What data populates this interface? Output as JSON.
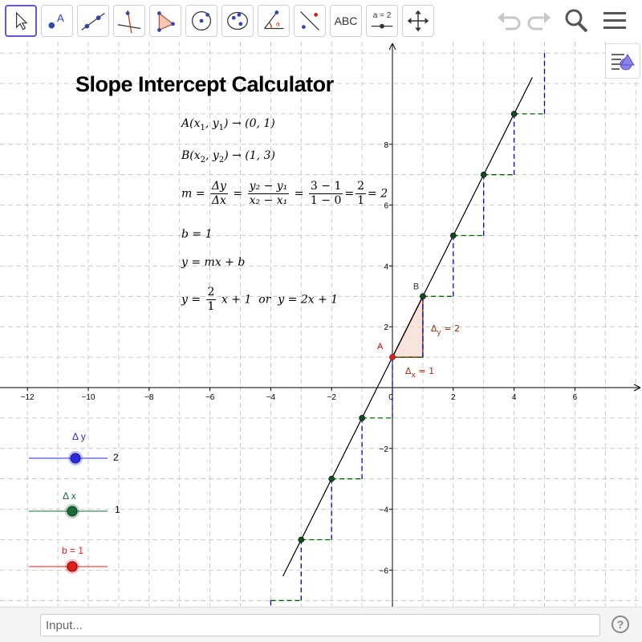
{
  "toolbar": {
    "tools": [
      {
        "name": "move-tool"
      },
      {
        "name": "point-tool",
        "label": "A"
      },
      {
        "name": "line-tool"
      },
      {
        "name": "perpendicular-tool"
      },
      {
        "name": "polygon-tool"
      },
      {
        "name": "circle-tool"
      },
      {
        "name": "ellipse-tool"
      },
      {
        "name": "angle-tool"
      },
      {
        "name": "reflect-tool"
      },
      {
        "name": "text-tool",
        "label": "ABC"
      },
      {
        "name": "slider-tool",
        "label": "a = 2"
      },
      {
        "name": "move-view-tool"
      }
    ]
  },
  "title": "Slope Intercept Calculator",
  "formulas": {
    "a_point": {
      "lhs": "A(x",
      "s1": "1",
      "mid": ", y",
      "s2": "1",
      "rhs": ") → (0, 1)"
    },
    "b_point": {
      "lhs": "B(x",
      "s1": "2",
      "mid": ", y",
      "s2": "2",
      "rhs": ") → (1, 3)"
    },
    "slope": {
      "m": "m =",
      "f1n": "Δy",
      "f1d": "Δx",
      "f2n": "y₂ − y₁",
      "f2d": "x₂ − x₁",
      "f3n": "3 − 1",
      "f3d": "1 − 0",
      "f4n": "2",
      "f4d": "1",
      "result": "= 2",
      "eq": "="
    },
    "b_value": "b = 1",
    "general": "y = mx + b",
    "final": {
      "lhs": "y =",
      "fn": "2",
      "fd": "1",
      "rest": "x + 1",
      "or": "or",
      "alt": "y = 2x + 1"
    }
  },
  "graph": {
    "x_ticks": [
      "−12",
      "−10",
      "−8",
      "−6",
      "−4",
      "−2",
      "0",
      "2",
      "4",
      "6"
    ],
    "y_ticks": [
      "8",
      "6",
      "4",
      "2",
      "−2",
      "−4",
      "−6"
    ],
    "point_a_label": "A",
    "point_b_label": "B",
    "delta_y_label": "Δ",
    "delta_y_sub": "y",
    "delta_y_val": " = 2",
    "delta_x_label": "Δ",
    "delta_x_sub": "x",
    "delta_x_val": " = 1",
    "colors": {
      "line": "#000000",
      "blue": "#0000cc",
      "green": "#006400",
      "red": "#cc0000",
      "triangle": "#f3d9cf",
      "grid": "#c0c0c0"
    }
  },
  "sliders": [
    {
      "label": "Δ y",
      "value": "2",
      "color": "#2a2adc"
    },
    {
      "label": "Δ x",
      "value": "1",
      "color": "#1b6b3a"
    },
    {
      "label": "b = 1",
      "value": "",
      "color": "#e02020"
    }
  ],
  "input": {
    "placeholder": "Input..."
  },
  "help": "?"
}
